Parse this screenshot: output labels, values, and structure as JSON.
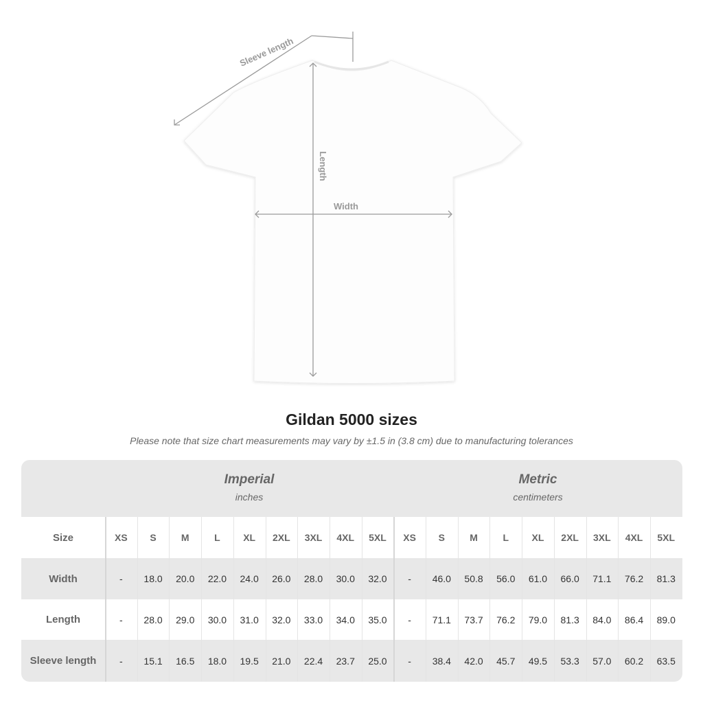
{
  "diagram": {
    "sleeve_label": "Sleeve length",
    "length_label": "Length",
    "width_label": "Width",
    "shirt_color": "#ffffff",
    "measure_line_color": "#9a9a9a"
  },
  "title": "Gildan 5000 sizes",
  "note": "Please note that size chart measurements may vary by ±1.5 in (3.8 cm) due to manufacturing tolerances",
  "table": {
    "imperial": {
      "title": "Imperial",
      "unit": "inches"
    },
    "metric": {
      "title": "Metric",
      "unit": "centimeters"
    },
    "size_header": "Size",
    "sizes": [
      "XS",
      "S",
      "M",
      "L",
      "XL",
      "2XL",
      "3XL",
      "4XL",
      "5XL"
    ],
    "rows": [
      {
        "label": "Width",
        "imperial": [
          "-",
          "18.0",
          "20.0",
          "22.0",
          "24.0",
          "26.0",
          "28.0",
          "30.0",
          "32.0"
        ],
        "metric": [
          "-",
          "46.0",
          "50.8",
          "56.0",
          "61.0",
          "66.0",
          "71.1",
          "76.2",
          "81.3"
        ]
      },
      {
        "label": "Length",
        "imperial": [
          "-",
          "28.0",
          "29.0",
          "30.0",
          "31.0",
          "32.0",
          "33.0",
          "34.0",
          "35.0"
        ],
        "metric": [
          "-",
          "71.1",
          "73.7",
          "76.2",
          "79.0",
          "81.3",
          "84.0",
          "86.4",
          "89.0"
        ]
      },
      {
        "label": "Sleeve length",
        "imperial": [
          "-",
          "15.1",
          "16.5",
          "18.0",
          "19.5",
          "21.0",
          "22.4",
          "23.7",
          "25.0"
        ],
        "metric": [
          "-",
          "38.4",
          "42.0",
          "45.7",
          "49.5",
          "53.3",
          "57.0",
          "60.2",
          "63.5"
        ]
      }
    ],
    "band_color": "#e8e8e8"
  }
}
